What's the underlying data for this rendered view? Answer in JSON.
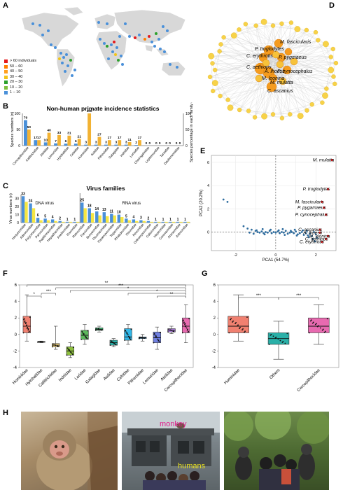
{
  "figure": {
    "panel_labels": [
      "A",
      "B",
      "C",
      "D",
      "E",
      "F",
      "G",
      "H"
    ]
  },
  "panel_a": {
    "legend_items": [
      {
        "label": "> 60 individuals",
        "color": "#e41a1c"
      },
      {
        "label": "50 – 60",
        "color": "#ff7f00"
      },
      {
        "label": "40 – 50",
        "color": "#ff9f1c"
      },
      {
        "label": "30 – 40",
        "color": "#f2c418"
      },
      {
        "label": "20 – 30",
        "color": "#2ca02c"
      },
      {
        "label": "10 – 20",
        "color": "#7fbf3f"
      },
      {
        "label": "1 – 10",
        "color": "#4a90d9"
      }
    ]
  },
  "chart_data": [
    {
      "panel": "B",
      "type": "bar",
      "title": "Non-human primate incidence statistics",
      "ylabel": "Species numbers (n)",
      "y2label": "Species percentage in each family (%)",
      "ylim": [
        0,
        100
      ],
      "categories": [
        "Cercopithecidae",
        "Callitrichidae",
        "Atelidae",
        "Lemuridae",
        "Hylobatidae",
        "Cebidae",
        "Hominidae",
        "Aotidae",
        "Pitheciidae",
        "Galagidae",
        "Indriidae",
        "Lorisidae",
        "Cheirogaleidae",
        "Lepilemuridae",
        "Tarsiidae",
        "Daubentoniidae"
      ],
      "series": [
        {
          "color": "#4a90d9",
          "values": [
            79,
            17,
            10,
            7,
            6,
            6,
            3,
            3,
            3,
            3,
            3,
            2,
            0,
            0,
            0,
            0
          ]
        },
        {
          "color": "#f2b233",
          "values": [
            50,
            17,
            40,
            33,
            31,
            21,
            100,
            27,
            17,
            17,
            11,
            17,
            0,
            0,
            0,
            0
          ]
        }
      ],
      "value_labels_blue": [
        "79",
        "17",
        "10",
        "7",
        "6",
        "6",
        "3",
        "3",
        "3",
        "3",
        "3",
        "2",
        "0",
        "0",
        "0",
        "0"
      ],
      "value_labels_orange": [
        "50",
        "17",
        "40",
        "33",
        "31",
        "21",
        "100",
        "27",
        "17",
        "17",
        "11",
        "17",
        "0",
        "0",
        "0",
        "0"
      ]
    },
    {
      "panel": "C",
      "type": "bar",
      "title": "Virus families",
      "ylabel": "Virus numbers (n)",
      "ylim": [
        0,
        35
      ],
      "group_labels": [
        "DNA virus",
        "RNA virus"
      ],
      "categories": [
        "Herpesviridae",
        "Adenoviridae",
        "Polyomaviridae",
        "Parvoviridae",
        "Papillomaviridae",
        "Hepadnaviridae",
        "Anelloviridae",
        "Poxviridae",
        "Retroviridae",
        "Flaviviridae",
        "Bunyaviridae",
        "Picornaviridae",
        "Paramyxoviridae",
        "Togaviridae",
        "Rhabdoviridae",
        "Filoviridae",
        "Reoviridae",
        "Orthomyxoviridae",
        "Caliciviridae",
        "Hepeviridae",
        "Coronaviridae",
        "Arenaviridae",
        "Astroviridae"
      ],
      "series": [
        {
          "color": "#4a90d9",
          "values": [
            33,
            24,
            6,
            5,
            4,
            2,
            1,
            1,
            25,
            18,
            14,
            13,
            11,
            10,
            5,
            4,
            3,
            2,
            1,
            1,
            1,
            1,
            1
          ]
        },
        {
          "color": "#f5e642",
          "values": [
            26,
            18,
            3,
            3,
            2,
            1,
            1,
            1,
            18,
            12,
            9,
            8,
            9,
            7,
            3,
            2,
            2,
            1,
            1,
            1,
            1,
            1,
            1
          ]
        }
      ],
      "value_labels": [
        "33",
        "24",
        "6",
        "5",
        "4",
        "2",
        "1",
        "1",
        "25",
        "18",
        "14",
        "13",
        "11",
        "10",
        "5",
        "4",
        "3",
        "2",
        "1",
        "1",
        "1",
        "1",
        "1"
      ]
    },
    {
      "panel": "E",
      "type": "scatter",
      "xlabel": "PCA1 (54.7%)",
      "ylabel": "PCA2 (20.2%)",
      "xlim": [
        -3.2,
        3.0
      ],
      "ylim": [
        -1.6,
        6.6
      ],
      "xticks": [
        "-2",
        "0",
        "2"
      ],
      "yticks": [
        "0",
        "2",
        "4",
        "6"
      ],
      "labeled_points": [
        {
          "name": "M. mulatta",
          "x": 2.8,
          "y": 6.2
        },
        {
          "name": "P. troglodytes",
          "x": 2.6,
          "y": 3.7
        },
        {
          "name": "M. fascicularis",
          "x": 2.3,
          "y": 2.6
        },
        {
          "name": "P. pygamaeus",
          "x": 2.4,
          "y": 2.1
        },
        {
          "name": "P. cynocephalus",
          "x": 2.5,
          "y": 1.5
        },
        {
          "name": "C. ascanius",
          "x": 2.2,
          "y": 0.2
        },
        {
          "name": "A. lhoesti",
          "x": 2.2,
          "y": -0.05
        },
        {
          "name": "M. leonina",
          "x": 2.6,
          "y": -0.35
        },
        {
          "name": "C. aethiops",
          "x": 2.5,
          "y": -0.6
        },
        {
          "name": "C. erythrotis",
          "x": 2.3,
          "y": -0.85
        }
      ],
      "other_points": [
        [
          -2.6,
          2.8
        ],
        [
          -2.4,
          2.6
        ],
        [
          -1.6,
          0.5
        ],
        [
          -1.4,
          0.3
        ],
        [
          -1.2,
          0.2
        ],
        [
          -1.0,
          0.1
        ],
        [
          -0.9,
          0.0
        ],
        [
          -0.8,
          -0.05
        ],
        [
          -0.7,
          0.05
        ],
        [
          -0.6,
          -0.1
        ],
        [
          -0.5,
          0.0
        ],
        [
          -0.4,
          -0.05
        ],
        [
          -0.3,
          0.1
        ],
        [
          -0.2,
          -0.1
        ],
        [
          -0.1,
          0.0
        ],
        [
          0.0,
          -0.05
        ],
        [
          0.1,
          0.05
        ],
        [
          0.2,
          -0.1
        ],
        [
          0.3,
          0.0
        ],
        [
          0.4,
          -0.05
        ],
        [
          0.5,
          0.1
        ],
        [
          0.6,
          -0.15
        ],
        [
          0.7,
          -0.05
        ],
        [
          0.8,
          0.0
        ],
        [
          0.9,
          -0.1
        ],
        [
          1.0,
          0.05
        ],
        [
          1.1,
          -0.2
        ],
        [
          1.2,
          -0.1
        ],
        [
          1.3,
          0.0
        ],
        [
          1.4,
          -0.25
        ],
        [
          1.5,
          -0.1
        ],
        [
          1.6,
          -0.3
        ],
        [
          1.7,
          -0.15
        ],
        [
          1.8,
          -0.35
        ],
        [
          1.9,
          0.0
        ],
        [
          2.0,
          -0.2
        ],
        [
          -1.3,
          -0.05
        ],
        [
          -0.95,
          0.15
        ],
        [
          -0.55,
          -0.2
        ],
        [
          -0.25,
          0.2
        ],
        [
          0.15,
          0.15
        ],
        [
          0.45,
          -0.25
        ],
        [
          0.75,
          0.1
        ],
        [
          1.05,
          -0.3
        ],
        [
          1.35,
          0.15
        ],
        [
          1.65,
          -0.45
        ],
        [
          1.85,
          -0.6
        ],
        [
          2.05,
          -0.5
        ],
        [
          -1.1,
          -0.15
        ],
        [
          -0.65,
          0.25
        ],
        [
          0.35,
          0.25
        ],
        [
          0.95,
          0.2
        ],
        [
          1.55,
          0.1
        ],
        [
          1.95,
          -0.8
        ]
      ]
    },
    {
      "panel": "F",
      "type": "box",
      "ylim": [
        -4,
        6
      ],
      "yticks": [
        "-4",
        "-2",
        "0",
        "2",
        "4",
        "6"
      ],
      "categories": [
        "Hominidae",
        "Hylobatidae",
        "Callitrichidae",
        "Indriidae",
        "Loridae",
        "Galagidae",
        "Aotidae",
        "Cebidae",
        "Pitheciidae",
        "Lemuridae",
        "Atelidae",
        "Cercopithecidae"
      ],
      "colors": [
        "#f08070",
        "#e8c8a8",
        "#f2d27a",
        "#8dbf3f",
        "#5cb85c",
        "#3fb070",
        "#2ab0a8",
        "#31b6e7",
        "#4aa3df",
        "#6f7fe0",
        "#b07fe0",
        "#e86ab0"
      ],
      "boxes": [
        {
          "min": -0.8,
          "q1": 0.2,
          "median": 1.0,
          "q3": 2.2,
          "max": 4.8
        },
        {
          "min": -1.0,
          "q1": -0.95,
          "median": -0.9,
          "q3": -0.85,
          "max": -0.8
        },
        {
          "min": -1.8,
          "q1": -1.5,
          "median": -1.3,
          "q3": -1.1,
          "max": 1.0
        },
        {
          "min": -2.8,
          "q1": -2.5,
          "median": -2.0,
          "q3": -1.5,
          "max": -1.0
        },
        {
          "min": -1.2,
          "q1": -0.6,
          "median": -0.1,
          "q3": 0.5,
          "max": 1.2
        },
        {
          "min": 0.3,
          "q1": 0.5,
          "median": 0.6,
          "q3": 0.8,
          "max": 1.0
        },
        {
          "min": -1.5,
          "q1": -1.3,
          "median": -1.0,
          "q3": -0.7,
          "max": -0.5
        },
        {
          "min": -1.2,
          "q1": -0.7,
          "median": -0.3,
          "q3": 0.7,
          "max": 1.2
        },
        {
          "min": -0.8,
          "q1": -0.5,
          "median": -0.4,
          "q3": -0.3,
          "max": 0.0
        },
        {
          "min": -1.8,
          "q1": -1.0,
          "median": -0.4,
          "q3": 0.3,
          "max": 0.9
        },
        {
          "min": 0.1,
          "q1": 0.3,
          "median": 0.5,
          "q3": 0.7,
          "max": 1.0
        },
        {
          "min": -1.0,
          "q1": 0.2,
          "median": 1.0,
          "q3": 2.0,
          "max": 3.6
        }
      ],
      "significance": [
        "*",
        "***",
        "**",
        "***",
        "*",
        "*",
        "**"
      ]
    },
    {
      "panel": "G",
      "type": "box",
      "ylim": [
        -4,
        6
      ],
      "yticks": [
        "-4",
        "-2",
        "0",
        "2",
        "4",
        "6"
      ],
      "categories": [
        "Hominidae",
        "Others",
        "Cercopithecidae"
      ],
      "colors": [
        "#f08070",
        "#2ab0a8",
        "#e86ab0"
      ],
      "boxes": [
        {
          "min": -0.8,
          "q1": 0.2,
          "median": 1.0,
          "q3": 2.2,
          "max": 4.8
        },
        {
          "min": -3.0,
          "q1": -1.2,
          "median": -0.5,
          "q3": 0.2,
          "max": 1.6
        },
        {
          "min": -1.2,
          "q1": 0.2,
          "median": 1.0,
          "q3": 2.0,
          "max": 3.6
        }
      ],
      "significance": [
        "***",
        "***"
      ]
    }
  ],
  "panel_d": {
    "labels": [
      "M. fascicularis",
      "P. troglodytes",
      "C. erythrotis",
      "P. pygmaeus",
      "C. aethiops",
      "A. lhoesti",
      "M. leonina",
      "P. cynocephalus",
      "M. mulatta",
      "C. ascanius"
    ]
  },
  "panel_h": {
    "overlay_monkey": "monkey",
    "overlay_humans": "humans"
  }
}
